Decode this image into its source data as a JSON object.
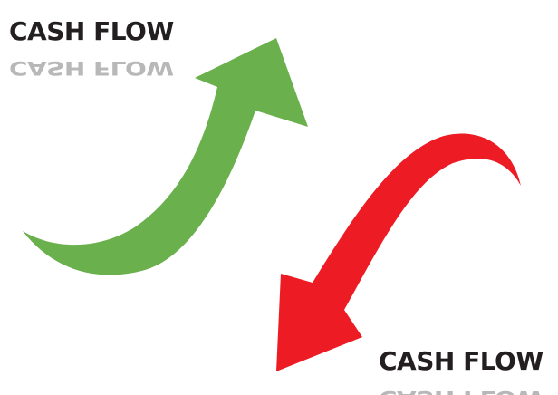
{
  "top_label": "CASH FLOW",
  "bottom_label": "CASH FLOW"
}
